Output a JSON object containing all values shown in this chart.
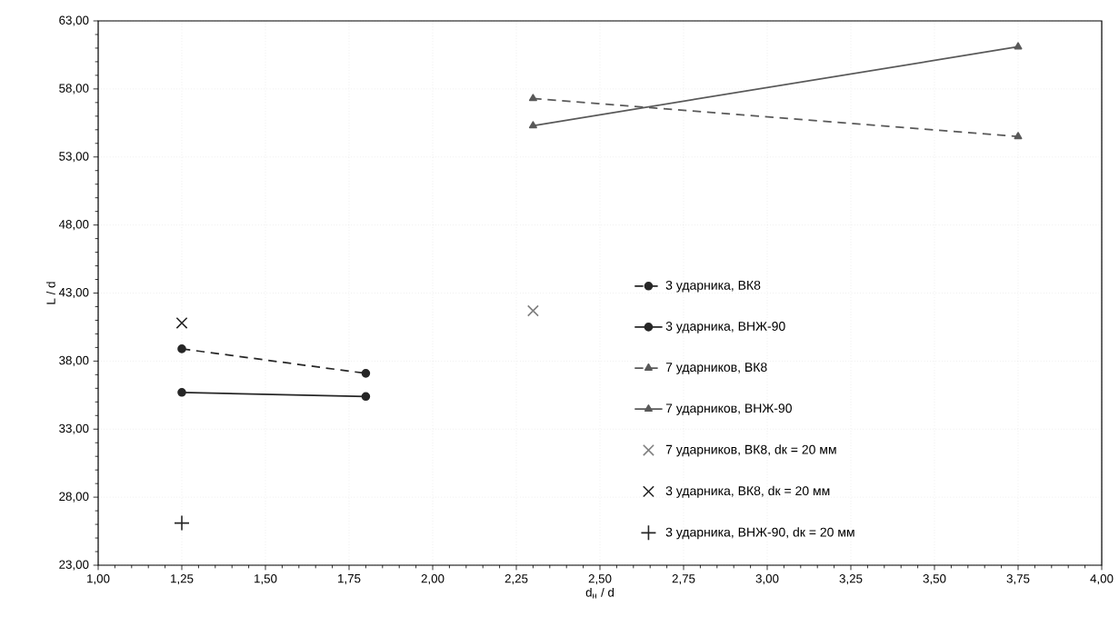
{
  "chart_data": {
    "type": "line",
    "xlabel": "d$_{н}$ / d",
    "ylabel": "L / d",
    "xlim": [
      1,
      4
    ],
    "ylim": [
      23,
      63
    ],
    "xticks": [
      {
        "value": 1,
        "label": "1,00"
      },
      {
        "value": 1.25,
        "label": "1,25"
      },
      {
        "value": 1.5,
        "label": "1,50"
      },
      {
        "value": 1.75,
        "label": "1,75"
      },
      {
        "value": 2,
        "label": "2,00"
      },
      {
        "value": 2.25,
        "label": "2,25"
      },
      {
        "value": 2.5,
        "label": "2,50"
      },
      {
        "value": 2.75,
        "label": "2,75"
      },
      {
        "value": 3,
        "label": "3,00"
      },
      {
        "value": 3.25,
        "label": "3,25"
      },
      {
        "value": 3.5,
        "label": "3,50"
      },
      {
        "value": 3.75,
        "label": "3,75"
      },
      {
        "value": 4,
        "label": "4,00"
      }
    ],
    "yticks": [
      {
        "value": 23,
        "label": "23,00"
      },
      {
        "value": 28,
        "label": "28,00"
      },
      {
        "value": 33,
        "label": "33,00"
      },
      {
        "value": 38,
        "label": "38,00"
      },
      {
        "value": 43,
        "label": "43,00"
      },
      {
        "value": 48,
        "label": "48,00"
      },
      {
        "value": 53,
        "label": "53,00"
      },
      {
        "value": 58,
        "label": "58,00"
      },
      {
        "value": 63,
        "label": "63,00"
      }
    ],
    "grid": true,
    "legend": "bottom",
    "series": [
      {
        "name": "3 ударника, ВК8",
        "color": "#262626",
        "marker": "circle",
        "line_style": "dashed",
        "x": [
          1.25,
          1.8
        ],
        "values": [
          38.9,
          37.1
        ]
      },
      {
        "name": "3 ударника, ВНЖ-90",
        "color": "#262626",
        "marker": "circle",
        "line_style": "solid",
        "x": [
          1.25,
          1.8
        ],
        "values": [
          35.7,
          35.4
        ]
      },
      {
        "name": "7 ударников, ВК8",
        "color": "#595959",
        "marker": "triangle",
        "line_style": "dashed",
        "x": [
          2.3,
          3.75
        ],
        "values": [
          57.3,
          54.5
        ]
      },
      {
        "name": "7 ударников, ВНЖ-90",
        "color": "#595959",
        "marker": "triangle",
        "line_style": "solid",
        "x": [
          2.3,
          3.75
        ],
        "values": [
          55.3,
          61.1
        ]
      },
      {
        "name": "7 ударников, ВК8, dк = 20 мм",
        "type": "scatter",
        "color": "#7f7f7f",
        "marker": "cross",
        "x": [
          2.3
        ],
        "values": [
          41.7
        ]
      },
      {
        "name": "3 ударника, ВК8, dк = 20 мм",
        "type": "scatter",
        "color": "#262626",
        "marker": "cross",
        "x": [
          1.25
        ],
        "values": [
          40.8
        ]
      },
      {
        "name": "3 ударника, ВНЖ-90, dк = 20 мм",
        "type": "scatter",
        "color": "#262626",
        "marker": "plus",
        "x": [
          1.25
        ],
        "values": [
          26.1
        ]
      }
    ]
  }
}
